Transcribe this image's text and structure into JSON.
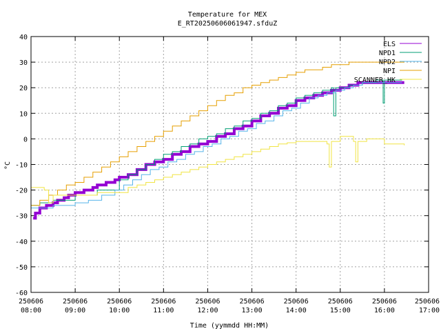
{
  "chart_data": {
    "type": "line",
    "title": "Temperature for MEX",
    "subtitle": "E_RT20250606061947.sfduZ",
    "xlabel": "Time (yymmdd HH:MM)",
    "ylabel": "°C",
    "xlim": [
      8.0,
      17.0
    ],
    "ylim": [
      -60,
      40
    ],
    "yticks": [
      -60,
      -50,
      -40,
      -30,
      -20,
      -10,
      0,
      10,
      20,
      30,
      40
    ],
    "xticks": [
      {
        "x": 8,
        "date": "250606",
        "time": "08:00"
      },
      {
        "x": 9,
        "date": "250606",
        "time": "09:00"
      },
      {
        "x": 10,
        "date": "250606",
        "time": "10:00"
      },
      {
        "x": 11,
        "date": "250606",
        "time": "11:00"
      },
      {
        "x": 12,
        "date": "250606",
        "time": "12:00"
      },
      {
        "x": 13,
        "date": "250606",
        "time": "13:00"
      },
      {
        "x": 14,
        "date": "250606",
        "time": "14:00"
      },
      {
        "x": 15,
        "date": "250606",
        "time": "15:00"
      },
      {
        "x": 16,
        "date": "250606",
        "time": "16:00"
      },
      {
        "x": 17,
        "date": "250606",
        "time": "17:00"
      }
    ],
    "grid": true,
    "legend_position": "top-right",
    "series": [
      {
        "name": "ELS",
        "color": "#9400d3",
        "width": 4,
        "points": [
          [
            8.05,
            -31
          ],
          [
            8.1,
            -29
          ],
          [
            8.2,
            -27
          ],
          [
            8.35,
            -26
          ],
          [
            8.5,
            -25
          ],
          [
            8.6,
            -24
          ],
          [
            8.75,
            -23
          ],
          [
            8.85,
            -22
          ],
          [
            9.0,
            -21
          ],
          [
            9.2,
            -20
          ],
          [
            9.4,
            -19
          ],
          [
            9.5,
            -18
          ],
          [
            9.7,
            -17
          ],
          [
            9.9,
            -16
          ],
          [
            10.0,
            -15
          ],
          [
            10.2,
            -14
          ],
          [
            10.4,
            -12
          ],
          [
            10.6,
            -10
          ],
          [
            10.8,
            -9
          ],
          [
            11.0,
            -8
          ],
          [
            11.2,
            -6
          ],
          [
            11.4,
            -5
          ],
          [
            11.6,
            -3
          ],
          [
            11.8,
            -2
          ],
          [
            12.0,
            -1
          ],
          [
            12.2,
            1
          ],
          [
            12.4,
            2
          ],
          [
            12.6,
            4
          ],
          [
            12.8,
            5
          ],
          [
            13.0,
            7
          ],
          [
            13.2,
            9
          ],
          [
            13.4,
            10
          ],
          [
            13.6,
            12
          ],
          [
            13.8,
            13
          ],
          [
            14.0,
            15
          ],
          [
            14.2,
            16
          ],
          [
            14.4,
            17
          ],
          [
            14.6,
            18
          ],
          [
            14.8,
            19
          ],
          [
            15.0,
            20
          ],
          [
            15.2,
            21
          ],
          [
            15.4,
            22
          ],
          [
            15.6,
            22
          ],
          [
            16.0,
            22
          ],
          [
            16.45,
            22
          ]
        ]
      },
      {
        "name": "NPD1",
        "color": "#009e73",
        "width": 1,
        "points": [
          [
            8.0,
            -26
          ],
          [
            8.2,
            -25
          ],
          [
            8.5,
            -24
          ],
          [
            9.0,
            -22
          ],
          [
            9.5,
            -20
          ],
          [
            10.0,
            -16
          ],
          [
            10.2,
            -14
          ],
          [
            10.4,
            -12
          ],
          [
            10.6,
            -10
          ],
          [
            10.8,
            -8
          ],
          [
            11.0,
            -6
          ],
          [
            11.2,
            -5
          ],
          [
            11.4,
            -3
          ],
          [
            11.6,
            -2
          ],
          [
            11.8,
            0
          ],
          [
            12.0,
            1
          ],
          [
            12.2,
            2
          ],
          [
            12.4,
            4
          ],
          [
            12.6,
            5
          ],
          [
            12.8,
            7
          ],
          [
            13.0,
            8
          ],
          [
            13.2,
            10
          ],
          [
            13.4,
            11
          ],
          [
            13.6,
            13
          ],
          [
            13.8,
            14
          ],
          [
            14.0,
            16
          ],
          [
            14.2,
            17
          ],
          [
            14.4,
            18
          ],
          [
            14.6,
            19
          ],
          [
            14.8,
            20
          ],
          [
            14.85,
            9
          ],
          [
            14.9,
            20
          ],
          [
            15.2,
            21
          ],
          [
            15.5,
            22
          ],
          [
            15.8,
            23
          ],
          [
            15.95,
            23
          ],
          [
            15.97,
            14
          ],
          [
            16.0,
            23
          ],
          [
            16.4,
            23
          ]
        ]
      },
      {
        "name": "NPD2",
        "color": "#56b4e9",
        "width": 1,
        "points": [
          [
            8.0,
            -27
          ],
          [
            8.5,
            -26
          ],
          [
            9.0,
            -25
          ],
          [
            9.3,
            -24
          ],
          [
            9.6,
            -22
          ],
          [
            9.9,
            -20
          ],
          [
            10.1,
            -18
          ],
          [
            10.3,
            -16
          ],
          [
            10.5,
            -14
          ],
          [
            10.7,
            -12
          ],
          [
            10.9,
            -11
          ],
          [
            11.1,
            -9
          ],
          [
            11.3,
            -8
          ],
          [
            11.5,
            -6
          ],
          [
            11.7,
            -5
          ],
          [
            11.9,
            -3
          ],
          [
            12.1,
            -2
          ],
          [
            12.3,
            0
          ],
          [
            12.5,
            1
          ],
          [
            12.7,
            3
          ],
          [
            12.9,
            4
          ],
          [
            13.1,
            6
          ],
          [
            13.3,
            7
          ],
          [
            13.5,
            9
          ],
          [
            13.7,
            11
          ],
          [
            13.9,
            12
          ],
          [
            14.1,
            14
          ],
          [
            14.3,
            16
          ],
          [
            14.5,
            17
          ],
          [
            14.7,
            18
          ],
          [
            14.9,
            19
          ],
          [
            15.1,
            20
          ],
          [
            15.3,
            21
          ],
          [
            15.5,
            22
          ],
          [
            16.0,
            22
          ],
          [
            16.4,
            22
          ]
        ]
      },
      {
        "name": "NPI",
        "color": "#e69f00",
        "width": 1,
        "points": [
          [
            8.0,
            -26
          ],
          [
            8.2,
            -24
          ],
          [
            8.4,
            -22
          ],
          [
            8.6,
            -20
          ],
          [
            8.8,
            -18
          ],
          [
            9.0,
            -17
          ],
          [
            9.2,
            -15
          ],
          [
            9.4,
            -13
          ],
          [
            9.6,
            -11
          ],
          [
            9.8,
            -9
          ],
          [
            10.0,
            -7
          ],
          [
            10.2,
            -5
          ],
          [
            10.4,
            -3
          ],
          [
            10.6,
            -1
          ],
          [
            10.8,
            1
          ],
          [
            11.0,
            3
          ],
          [
            11.2,
            5
          ],
          [
            11.4,
            7
          ],
          [
            11.6,
            9
          ],
          [
            11.8,
            11
          ],
          [
            12.0,
            13
          ],
          [
            12.2,
            15
          ],
          [
            12.4,
            17
          ],
          [
            12.6,
            18
          ],
          [
            12.8,
            20
          ],
          [
            13.0,
            21
          ],
          [
            13.2,
            22
          ],
          [
            13.4,
            23
          ],
          [
            13.6,
            24
          ],
          [
            13.8,
            25
          ],
          [
            14.0,
            26
          ],
          [
            14.2,
            27
          ],
          [
            14.4,
            27
          ],
          [
            14.6,
            28
          ],
          [
            14.8,
            29
          ],
          [
            15.0,
            29
          ],
          [
            15.2,
            30
          ],
          [
            15.4,
            30
          ],
          [
            15.6,
            30
          ],
          [
            16.0,
            30
          ],
          [
            16.45,
            30
          ]
        ]
      },
      {
        "name": "SCANNER_HK",
        "color": "#f0e442",
        "width": 1,
        "points": [
          [
            8.0,
            -19
          ],
          [
            8.3,
            -20
          ],
          [
            8.4,
            -25
          ],
          [
            8.5,
            -22
          ],
          [
            9.0,
            -22
          ],
          [
            9.5,
            -21
          ],
          [
            10.0,
            -21
          ],
          [
            10.2,
            -19
          ],
          [
            10.4,
            -18
          ],
          [
            10.6,
            -17
          ],
          [
            10.8,
            -16
          ],
          [
            11.0,
            -15
          ],
          [
            11.2,
            -14
          ],
          [
            11.4,
            -13
          ],
          [
            11.6,
            -12
          ],
          [
            11.8,
            -11
          ],
          [
            12.0,
            -10
          ],
          [
            12.2,
            -9
          ],
          [
            12.4,
            -8
          ],
          [
            12.6,
            -7
          ],
          [
            12.8,
            -6
          ],
          [
            13.0,
            -5
          ],
          [
            13.2,
            -4
          ],
          [
            13.4,
            -3
          ],
          [
            13.6,
            -2
          ],
          [
            13.8,
            -1.5
          ],
          [
            14.0,
            -1
          ],
          [
            14.2,
            -1
          ],
          [
            14.4,
            -1
          ],
          [
            14.6,
            -1
          ],
          [
            14.7,
            -2
          ],
          [
            14.75,
            -11
          ],
          [
            14.8,
            -1
          ],
          [
            15.0,
            1
          ],
          [
            15.2,
            1
          ],
          [
            15.3,
            -1
          ],
          [
            15.35,
            -9
          ],
          [
            15.4,
            -1
          ],
          [
            15.6,
            0
          ],
          [
            16.0,
            -2
          ],
          [
            16.45,
            -2.5
          ]
        ]
      }
    ]
  }
}
